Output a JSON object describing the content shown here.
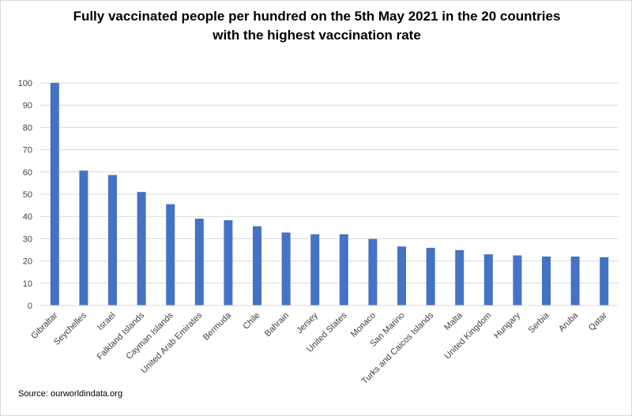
{
  "chart_data": {
    "type": "bar",
    "title_line1": "Fully vaccinated people per hundred on the 5th May 2021 in the 20 countries",
    "title_line2": "with the highest vaccination rate",
    "categories": [
      "Gibraltar",
      "Seychelles",
      "Israel",
      "Falkland Islands",
      "Cayman Islands",
      "United Arab Emirates",
      "Bermuda",
      "Chile",
      "Bahrain",
      "Jersey",
      "United States",
      "Monaco",
      "San Marino",
      "Turks and Caicos Islands",
      "Malta",
      "United Kingdom",
      "Hungary",
      "Serbia",
      "Aruba",
      "Qatar"
    ],
    "values": [
      100,
      60.6,
      58.6,
      51,
      45.5,
      39,
      38.3,
      35.6,
      32.8,
      32,
      32,
      29.9,
      26.5,
      25.9,
      24.9,
      23,
      22.5,
      22,
      22,
      21.7
    ],
    "xlabel": "",
    "ylabel": "",
    "ylim": [
      0,
      100
    ],
    "yticks": [
      0,
      10,
      20,
      30,
      40,
      50,
      60,
      70,
      80,
      90,
      100
    ],
    "grid": true,
    "legend": "none",
    "bar_color": "#4472c4",
    "grid_color": "#d9d9d9",
    "source": "Source: ourworldindata.org"
  }
}
